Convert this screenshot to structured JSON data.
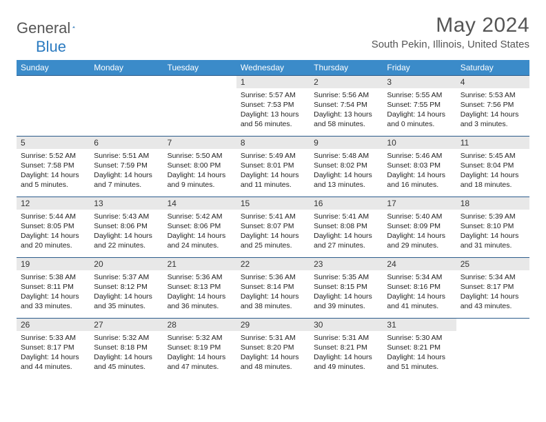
{
  "brand": {
    "part1": "General",
    "part2": "Blue"
  },
  "title": "May 2024",
  "location": "South Pekin, Illinois, United States",
  "colors": {
    "header_bg": "#3b8bc9",
    "header_text": "#ffffff",
    "daynum_bg": "#e8e8e8",
    "border_top": "#2a5a8a",
    "title_color": "#555555",
    "brand_blue": "#2a7ac0"
  },
  "typography": {
    "title_fontsize": 30,
    "location_fontsize": 15,
    "header_fontsize": 12,
    "cell_fontsize": 10.5
  },
  "weekdays": [
    "Sunday",
    "Monday",
    "Tuesday",
    "Wednesday",
    "Thursday",
    "Friday",
    "Saturday"
  ],
  "weeks": [
    [
      null,
      null,
      null,
      {
        "day": "1",
        "sunrise": "Sunrise: 5:57 AM",
        "sunset": "Sunset: 7:53 PM",
        "daylight": "Daylight: 13 hours and 56 minutes."
      },
      {
        "day": "2",
        "sunrise": "Sunrise: 5:56 AM",
        "sunset": "Sunset: 7:54 PM",
        "daylight": "Daylight: 13 hours and 58 minutes."
      },
      {
        "day": "3",
        "sunrise": "Sunrise: 5:55 AM",
        "sunset": "Sunset: 7:55 PM",
        "daylight": "Daylight: 14 hours and 0 minutes."
      },
      {
        "day": "4",
        "sunrise": "Sunrise: 5:53 AM",
        "sunset": "Sunset: 7:56 PM",
        "daylight": "Daylight: 14 hours and 3 minutes."
      }
    ],
    [
      {
        "day": "5",
        "sunrise": "Sunrise: 5:52 AM",
        "sunset": "Sunset: 7:58 PM",
        "daylight": "Daylight: 14 hours and 5 minutes."
      },
      {
        "day": "6",
        "sunrise": "Sunrise: 5:51 AM",
        "sunset": "Sunset: 7:59 PM",
        "daylight": "Daylight: 14 hours and 7 minutes."
      },
      {
        "day": "7",
        "sunrise": "Sunrise: 5:50 AM",
        "sunset": "Sunset: 8:00 PM",
        "daylight": "Daylight: 14 hours and 9 minutes."
      },
      {
        "day": "8",
        "sunrise": "Sunrise: 5:49 AM",
        "sunset": "Sunset: 8:01 PM",
        "daylight": "Daylight: 14 hours and 11 minutes."
      },
      {
        "day": "9",
        "sunrise": "Sunrise: 5:48 AM",
        "sunset": "Sunset: 8:02 PM",
        "daylight": "Daylight: 14 hours and 13 minutes."
      },
      {
        "day": "10",
        "sunrise": "Sunrise: 5:46 AM",
        "sunset": "Sunset: 8:03 PM",
        "daylight": "Daylight: 14 hours and 16 minutes."
      },
      {
        "day": "11",
        "sunrise": "Sunrise: 5:45 AM",
        "sunset": "Sunset: 8:04 PM",
        "daylight": "Daylight: 14 hours and 18 minutes."
      }
    ],
    [
      {
        "day": "12",
        "sunrise": "Sunrise: 5:44 AM",
        "sunset": "Sunset: 8:05 PM",
        "daylight": "Daylight: 14 hours and 20 minutes."
      },
      {
        "day": "13",
        "sunrise": "Sunrise: 5:43 AM",
        "sunset": "Sunset: 8:06 PM",
        "daylight": "Daylight: 14 hours and 22 minutes."
      },
      {
        "day": "14",
        "sunrise": "Sunrise: 5:42 AM",
        "sunset": "Sunset: 8:06 PM",
        "daylight": "Daylight: 14 hours and 24 minutes."
      },
      {
        "day": "15",
        "sunrise": "Sunrise: 5:41 AM",
        "sunset": "Sunset: 8:07 PM",
        "daylight": "Daylight: 14 hours and 25 minutes."
      },
      {
        "day": "16",
        "sunrise": "Sunrise: 5:41 AM",
        "sunset": "Sunset: 8:08 PM",
        "daylight": "Daylight: 14 hours and 27 minutes."
      },
      {
        "day": "17",
        "sunrise": "Sunrise: 5:40 AM",
        "sunset": "Sunset: 8:09 PM",
        "daylight": "Daylight: 14 hours and 29 minutes."
      },
      {
        "day": "18",
        "sunrise": "Sunrise: 5:39 AM",
        "sunset": "Sunset: 8:10 PM",
        "daylight": "Daylight: 14 hours and 31 minutes."
      }
    ],
    [
      {
        "day": "19",
        "sunrise": "Sunrise: 5:38 AM",
        "sunset": "Sunset: 8:11 PM",
        "daylight": "Daylight: 14 hours and 33 minutes."
      },
      {
        "day": "20",
        "sunrise": "Sunrise: 5:37 AM",
        "sunset": "Sunset: 8:12 PM",
        "daylight": "Daylight: 14 hours and 35 minutes."
      },
      {
        "day": "21",
        "sunrise": "Sunrise: 5:36 AM",
        "sunset": "Sunset: 8:13 PM",
        "daylight": "Daylight: 14 hours and 36 minutes."
      },
      {
        "day": "22",
        "sunrise": "Sunrise: 5:36 AM",
        "sunset": "Sunset: 8:14 PM",
        "daylight": "Daylight: 14 hours and 38 minutes."
      },
      {
        "day": "23",
        "sunrise": "Sunrise: 5:35 AM",
        "sunset": "Sunset: 8:15 PM",
        "daylight": "Daylight: 14 hours and 39 minutes."
      },
      {
        "day": "24",
        "sunrise": "Sunrise: 5:34 AM",
        "sunset": "Sunset: 8:16 PM",
        "daylight": "Daylight: 14 hours and 41 minutes."
      },
      {
        "day": "25",
        "sunrise": "Sunrise: 5:34 AM",
        "sunset": "Sunset: 8:17 PM",
        "daylight": "Daylight: 14 hours and 43 minutes."
      }
    ],
    [
      {
        "day": "26",
        "sunrise": "Sunrise: 5:33 AM",
        "sunset": "Sunset: 8:17 PM",
        "daylight": "Daylight: 14 hours and 44 minutes."
      },
      {
        "day": "27",
        "sunrise": "Sunrise: 5:32 AM",
        "sunset": "Sunset: 8:18 PM",
        "daylight": "Daylight: 14 hours and 45 minutes."
      },
      {
        "day": "28",
        "sunrise": "Sunrise: 5:32 AM",
        "sunset": "Sunset: 8:19 PM",
        "daylight": "Daylight: 14 hours and 47 minutes."
      },
      {
        "day": "29",
        "sunrise": "Sunrise: 5:31 AM",
        "sunset": "Sunset: 8:20 PM",
        "daylight": "Daylight: 14 hours and 48 minutes."
      },
      {
        "day": "30",
        "sunrise": "Sunrise: 5:31 AM",
        "sunset": "Sunset: 8:21 PM",
        "daylight": "Daylight: 14 hours and 49 minutes."
      },
      {
        "day": "31",
        "sunrise": "Sunrise: 5:30 AM",
        "sunset": "Sunset: 8:21 PM",
        "daylight": "Daylight: 14 hours and 51 minutes."
      },
      null
    ]
  ]
}
